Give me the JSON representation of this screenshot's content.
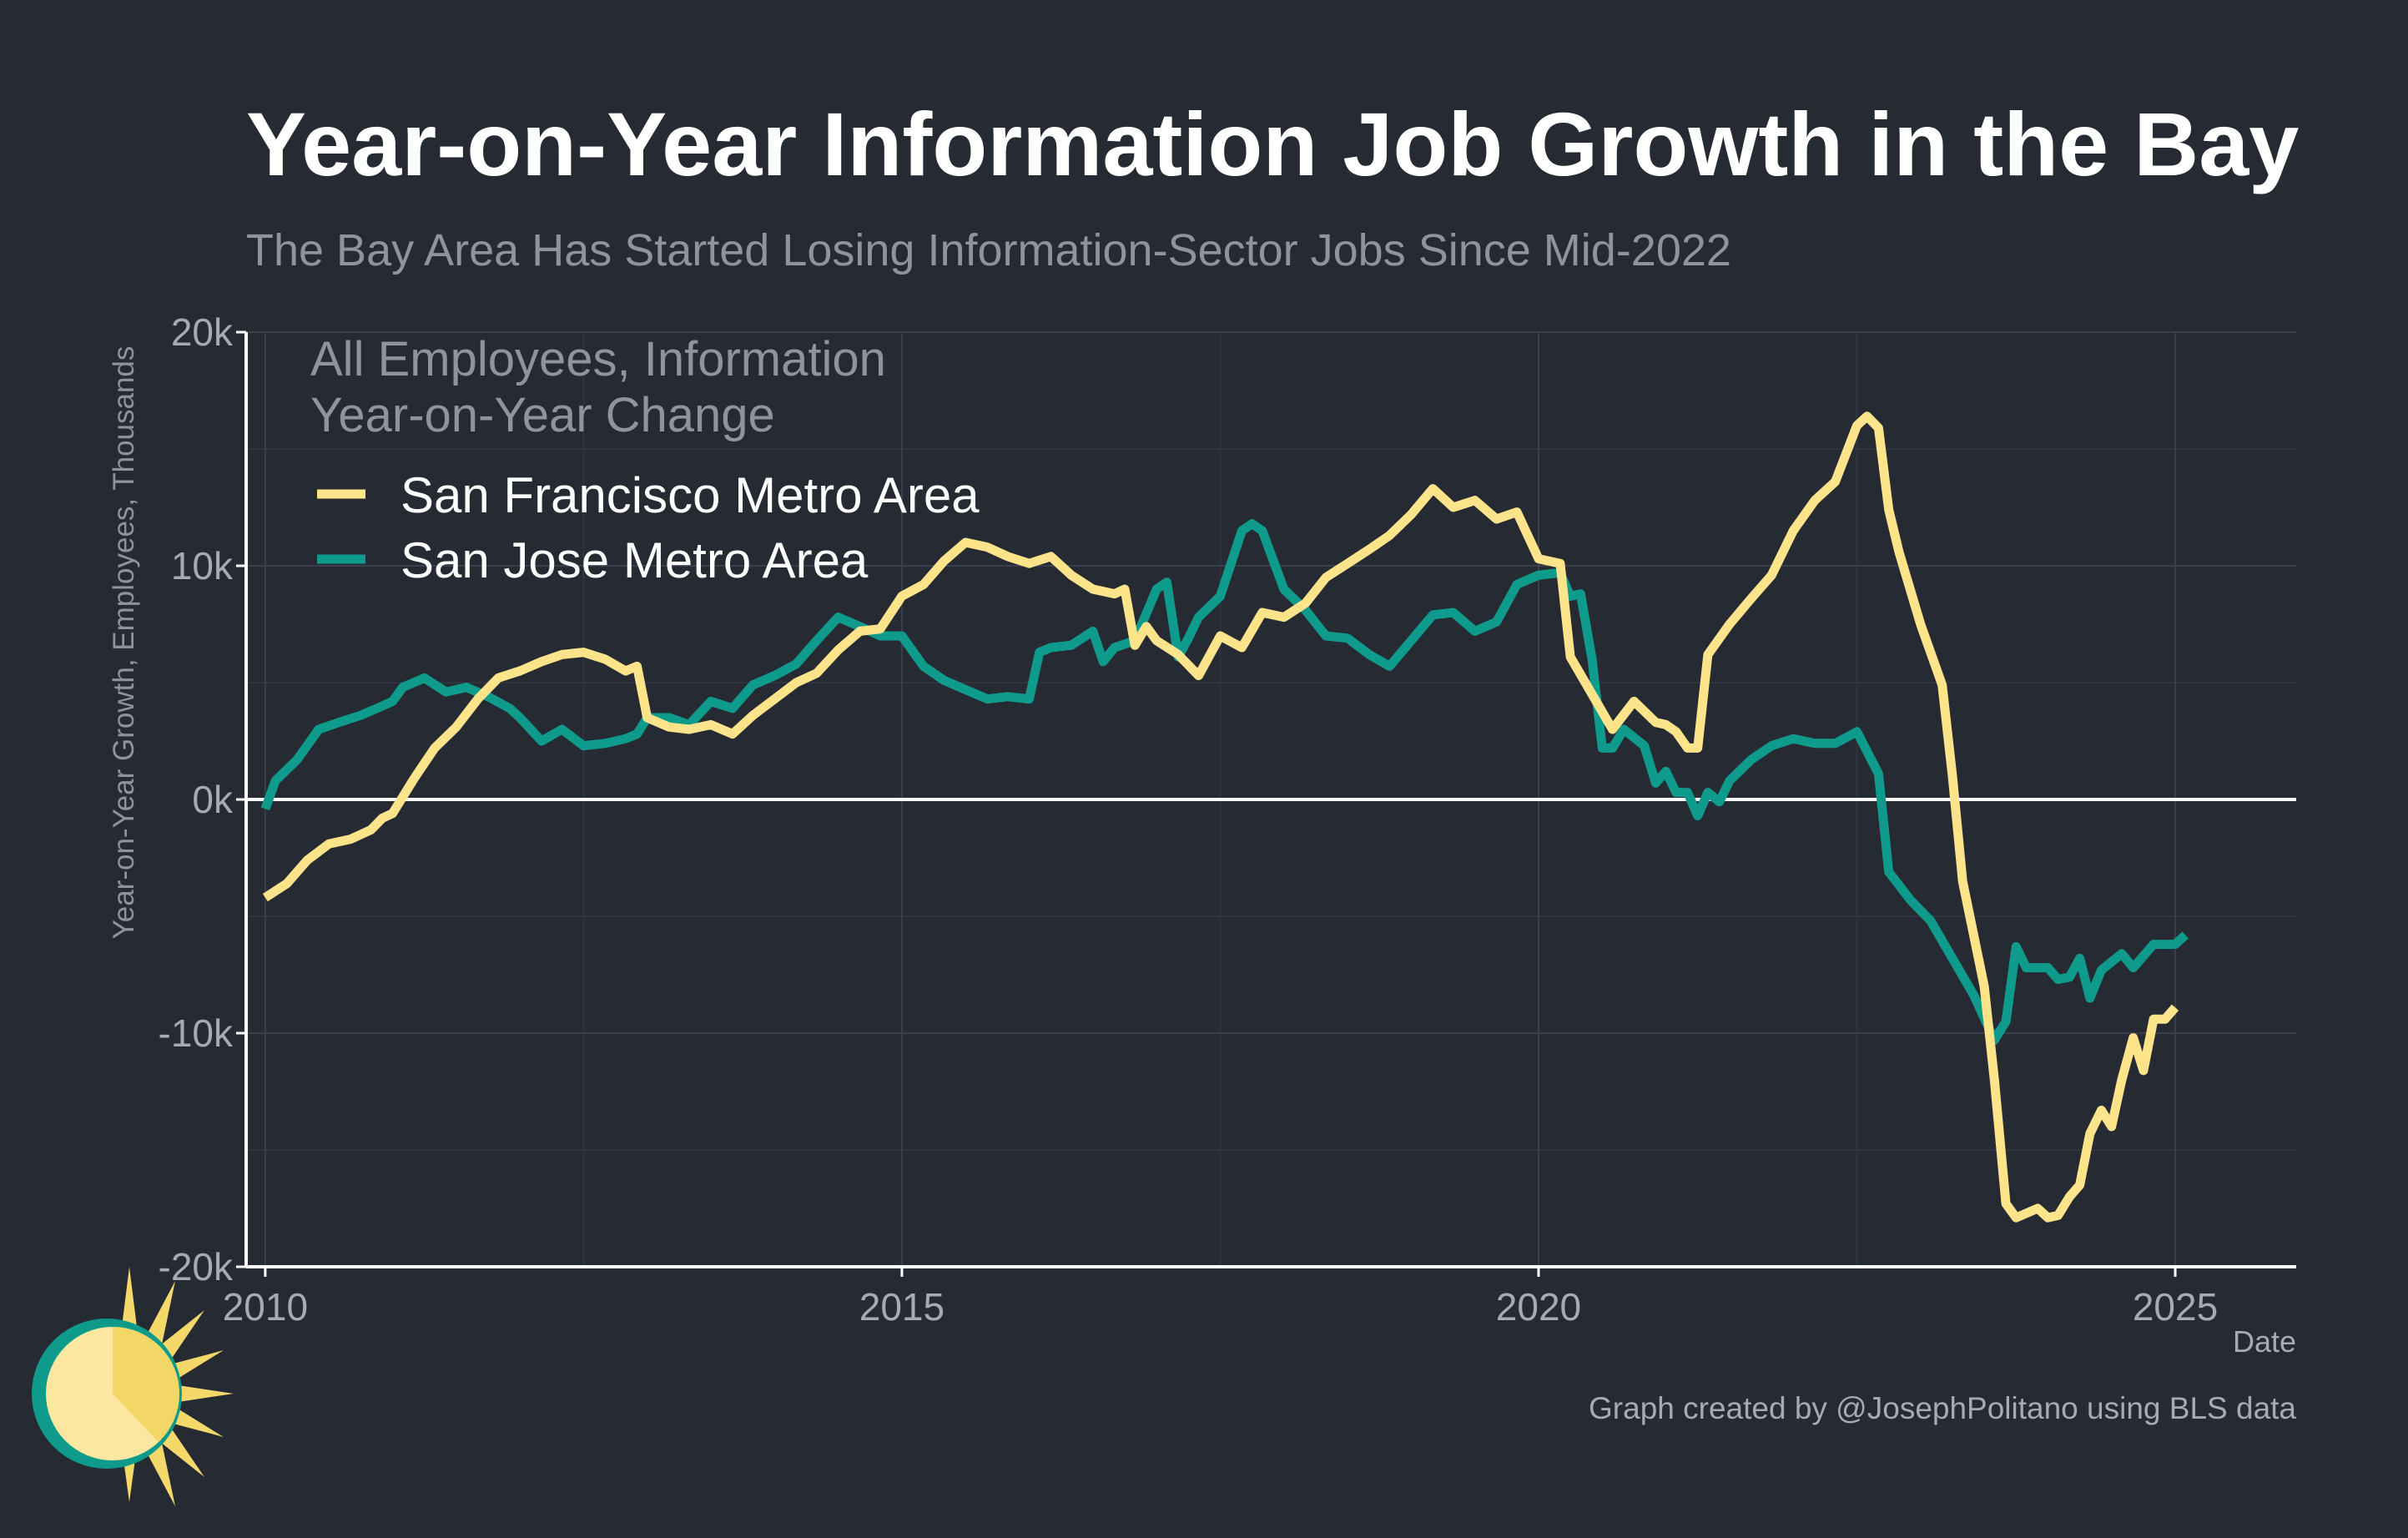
{
  "chart_data": {
    "type": "line",
    "title": "Year-on-Year Information Job Growth in the Bay",
    "subtitle": "The Bay Area Has Started Losing Information-Sector Jobs Since Mid-2022",
    "ylabel": "Year-on-Year Growth, Employees, Thousands",
    "xlabel": "Date",
    "xlim": [
      2009.85,
      2025.95
    ],
    "ylim": [
      -20,
      20
    ],
    "x_ticks": [
      {
        "value": 2010,
        "label": "2010"
      },
      {
        "value": 2015,
        "label": "2015"
      },
      {
        "value": 2020,
        "label": "2020"
      },
      {
        "value": 2025,
        "label": "2025"
      }
    ],
    "y_ticks": [
      {
        "value": 20,
        "label": "20k"
      },
      {
        "value": 10,
        "label": "10k"
      },
      {
        "value": 0,
        "label": "0k"
      },
      {
        "value": -10,
        "label": "-10k"
      },
      {
        "value": -20,
        "label": "-20k"
      }
    ],
    "legend": {
      "title_line1": "All Employees, Information",
      "title_line2": "Year-on-Year Change",
      "position": "top-left"
    },
    "grid": true,
    "caption": "Graph created by @JosephPolitano using BLS data",
    "series": [
      {
        "name": "San Francisco Metro Area",
        "color": "#fde38a",
        "points": [
          [
            2010.0,
            -4.2
          ],
          [
            2010.17,
            -3.6
          ],
          [
            2010.33,
            -2.6
          ],
          [
            2010.5,
            -1.9
          ],
          [
            2010.67,
            -1.7
          ],
          [
            2010.83,
            -1.3
          ],
          [
            2010.92,
            -0.8
          ],
          [
            2011.0,
            -0.6
          ],
          [
            2011.17,
            0.9
          ],
          [
            2011.33,
            2.2
          ],
          [
            2011.5,
            3.1
          ],
          [
            2011.67,
            4.3
          ],
          [
            2011.83,
            5.2
          ],
          [
            2012.0,
            5.5
          ],
          [
            2012.17,
            5.9
          ],
          [
            2012.33,
            6.2
          ],
          [
            2012.5,
            6.3
          ],
          [
            2012.67,
            6.0
          ],
          [
            2012.83,
            5.5
          ],
          [
            2012.92,
            5.7
          ],
          [
            2013.0,
            3.5
          ],
          [
            2013.17,
            3.1
          ],
          [
            2013.33,
            3.0
          ],
          [
            2013.5,
            3.2
          ],
          [
            2013.67,
            2.8
          ],
          [
            2013.83,
            3.6
          ],
          [
            2014.0,
            4.3
          ],
          [
            2014.17,
            5.0
          ],
          [
            2014.33,
            5.4
          ],
          [
            2014.5,
            6.4
          ],
          [
            2014.67,
            7.2
          ],
          [
            2014.83,
            7.3
          ],
          [
            2015.0,
            8.7
          ],
          [
            2015.17,
            9.2
          ],
          [
            2015.33,
            10.2
          ],
          [
            2015.5,
            11.0
          ],
          [
            2015.67,
            10.8
          ],
          [
            2015.83,
            10.4
          ],
          [
            2016.0,
            10.1
          ],
          [
            2016.17,
            10.4
          ],
          [
            2016.33,
            9.6
          ],
          [
            2016.5,
            9.0
          ],
          [
            2016.67,
            8.8
          ],
          [
            2016.75,
            9.0
          ],
          [
            2016.83,
            6.6
          ],
          [
            2016.92,
            7.4
          ],
          [
            2017.0,
            6.8
          ],
          [
            2017.17,
            6.2
          ],
          [
            2017.33,
            5.3
          ],
          [
            2017.5,
            7.0
          ],
          [
            2017.67,
            6.5
          ],
          [
            2017.83,
            8.0
          ],
          [
            2018.0,
            7.8
          ],
          [
            2018.17,
            8.4
          ],
          [
            2018.33,
            9.5
          ],
          [
            2018.5,
            10.1
          ],
          [
            2018.67,
            10.7
          ],
          [
            2018.83,
            11.3
          ],
          [
            2019.0,
            12.2
          ],
          [
            2019.17,
            13.3
          ],
          [
            2019.33,
            12.5
          ],
          [
            2019.5,
            12.8
          ],
          [
            2019.67,
            12.0
          ],
          [
            2019.83,
            12.3
          ],
          [
            2020.0,
            10.3
          ],
          [
            2020.17,
            10.1
          ],
          [
            2020.25,
            6.1
          ],
          [
            2020.42,
            4.5
          ],
          [
            2020.58,
            3.0
          ],
          [
            2020.75,
            4.2
          ],
          [
            2020.92,
            3.3
          ],
          [
            2021.0,
            3.2
          ],
          [
            2021.08,
            2.9
          ],
          [
            2021.17,
            2.2
          ],
          [
            2021.25,
            2.2
          ],
          [
            2021.33,
            6.2
          ],
          [
            2021.5,
            7.5
          ],
          [
            2021.67,
            8.6
          ],
          [
            2021.83,
            9.6
          ],
          [
            2022.0,
            11.5
          ],
          [
            2022.17,
            12.8
          ],
          [
            2022.33,
            13.6
          ],
          [
            2022.5,
            16.0
          ],
          [
            2022.58,
            16.4
          ],
          [
            2022.67,
            15.9
          ],
          [
            2022.75,
            12.4
          ],
          [
            2022.83,
            10.6
          ],
          [
            2023.0,
            7.5
          ],
          [
            2023.17,
            4.9
          ],
          [
            2023.25,
            1.0
          ],
          [
            2023.33,
            -3.5
          ],
          [
            2023.5,
            -8.0
          ],
          [
            2023.58,
            -12.0
          ],
          [
            2023.67,
            -17.3
          ],
          [
            2023.75,
            -17.9
          ],
          [
            2023.92,
            -17.5
          ],
          [
            2024.0,
            -17.9
          ],
          [
            2024.08,
            -17.8
          ],
          [
            2024.17,
            -17.0
          ],
          [
            2024.25,
            -16.5
          ],
          [
            2024.33,
            -14.3
          ],
          [
            2024.42,
            -13.3
          ],
          [
            2024.5,
            -14.0
          ],
          [
            2024.58,
            -12.0
          ],
          [
            2024.67,
            -10.2
          ],
          [
            2024.75,
            -11.6
          ],
          [
            2024.83,
            -9.4
          ],
          [
            2024.92,
            -9.4
          ],
          [
            2025.0,
            -8.9
          ]
        ]
      },
      {
        "name": "San Jose Metro Area",
        "color": "#0f9b8c",
        "points": [
          [
            2010.0,
            -0.4
          ],
          [
            2010.08,
            0.8
          ],
          [
            2010.25,
            1.7
          ],
          [
            2010.42,
            3.0
          ],
          [
            2010.58,
            3.3
          ],
          [
            2010.75,
            3.6
          ],
          [
            2010.92,
            4.0
          ],
          [
            2011.0,
            4.2
          ],
          [
            2011.08,
            4.8
          ],
          [
            2011.25,
            5.2
          ],
          [
            2011.42,
            4.6
          ],
          [
            2011.58,
            4.8
          ],
          [
            2011.75,
            4.4
          ],
          [
            2011.92,
            3.9
          ],
          [
            2012.0,
            3.5
          ],
          [
            2012.17,
            2.5
          ],
          [
            2012.33,
            3.0
          ],
          [
            2012.5,
            2.3
          ],
          [
            2012.67,
            2.4
          ],
          [
            2012.83,
            2.6
          ],
          [
            2012.92,
            2.8
          ],
          [
            2013.0,
            3.5
          ],
          [
            2013.17,
            3.5
          ],
          [
            2013.33,
            3.2
          ],
          [
            2013.5,
            4.2
          ],
          [
            2013.67,
            3.9
          ],
          [
            2013.83,
            4.9
          ],
          [
            2014.0,
            5.3
          ],
          [
            2014.17,
            5.8
          ],
          [
            2014.33,
            6.8
          ],
          [
            2014.5,
            7.8
          ],
          [
            2014.67,
            7.4
          ],
          [
            2014.83,
            7.0
          ],
          [
            2015.0,
            7.0
          ],
          [
            2015.17,
            5.7
          ],
          [
            2015.33,
            5.1
          ],
          [
            2015.5,
            4.7
          ],
          [
            2015.67,
            4.3
          ],
          [
            2015.83,
            4.4
          ],
          [
            2016.0,
            4.3
          ],
          [
            2016.08,
            6.3
          ],
          [
            2016.17,
            6.5
          ],
          [
            2016.33,
            6.6
          ],
          [
            2016.5,
            7.2
          ],
          [
            2016.58,
            5.9
          ],
          [
            2016.67,
            6.5
          ],
          [
            2016.83,
            6.8
          ],
          [
            2017.0,
            9.0
          ],
          [
            2017.08,
            9.3
          ],
          [
            2017.17,
            6.1
          ],
          [
            2017.25,
            6.9
          ],
          [
            2017.33,
            7.8
          ],
          [
            2017.5,
            8.7
          ],
          [
            2017.67,
            11.5
          ],
          [
            2017.75,
            11.8
          ],
          [
            2017.83,
            11.5
          ],
          [
            2018.0,
            9.0
          ],
          [
            2018.17,
            8.1
          ],
          [
            2018.33,
            7.0
          ],
          [
            2018.5,
            6.9
          ],
          [
            2018.67,
            6.2
          ],
          [
            2018.83,
            5.7
          ],
          [
            2019.0,
            6.8
          ],
          [
            2019.17,
            7.9
          ],
          [
            2019.33,
            8.0
          ],
          [
            2019.5,
            7.2
          ],
          [
            2019.67,
            7.6
          ],
          [
            2019.83,
            9.2
          ],
          [
            2020.0,
            9.6
          ],
          [
            2020.17,
            9.7
          ],
          [
            2020.25,
            8.7
          ],
          [
            2020.33,
            8.8
          ],
          [
            2020.42,
            6.0
          ],
          [
            2020.5,
            2.2
          ],
          [
            2020.58,
            2.2
          ],
          [
            2020.67,
            3.0
          ],
          [
            2020.83,
            2.3
          ],
          [
            2020.92,
            0.7
          ],
          [
            2021.0,
            1.2
          ],
          [
            2021.08,
            0.3
          ],
          [
            2021.17,
            0.3
          ],
          [
            2021.25,
            -0.7
          ],
          [
            2021.33,
            0.3
          ],
          [
            2021.42,
            -0.1
          ],
          [
            2021.5,
            0.8
          ],
          [
            2021.67,
            1.7
          ],
          [
            2021.83,
            2.3
          ],
          [
            2022.0,
            2.6
          ],
          [
            2022.17,
            2.4
          ],
          [
            2022.33,
            2.4
          ],
          [
            2022.5,
            2.9
          ],
          [
            2022.67,
            1.1
          ],
          [
            2022.75,
            -3.1
          ],
          [
            2022.92,
            -4.3
          ],
          [
            2023.08,
            -5.2
          ],
          [
            2023.25,
            -6.8
          ],
          [
            2023.42,
            -8.4
          ],
          [
            2023.58,
            -10.3
          ],
          [
            2023.67,
            -9.5
          ],
          [
            2023.75,
            -6.3
          ],
          [
            2023.83,
            -7.2
          ],
          [
            2024.0,
            -7.2
          ],
          [
            2024.08,
            -7.7
          ],
          [
            2024.17,
            -7.6
          ],
          [
            2024.25,
            -6.8
          ],
          [
            2024.33,
            -8.5
          ],
          [
            2024.42,
            -7.3
          ],
          [
            2024.58,
            -6.6
          ],
          [
            2024.67,
            -7.2
          ],
          [
            2024.83,
            -6.2
          ],
          [
            2025.0,
            -6.2
          ],
          [
            2025.08,
            -5.8
          ]
        ]
      }
    ]
  }
}
